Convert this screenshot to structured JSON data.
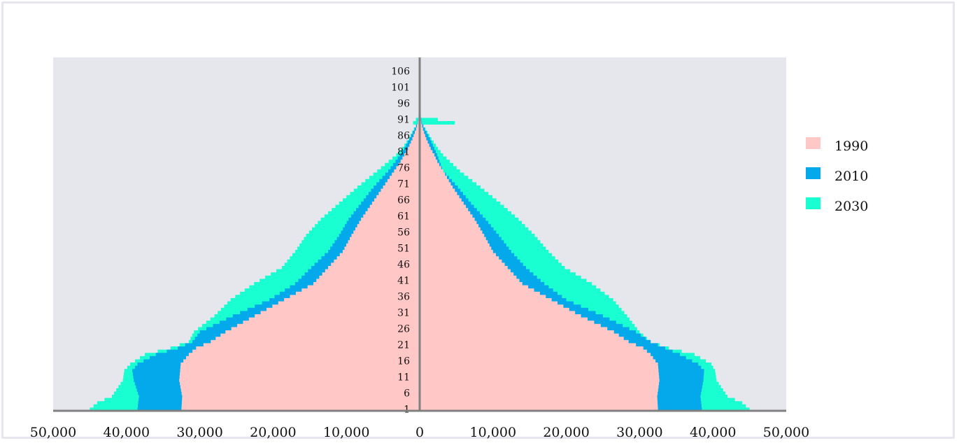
{
  "chart_data": {
    "type": "bar",
    "orientation": "horizontal-population-pyramid",
    "title": "",
    "xlabel": "",
    "ylabel": "",
    "xlim": [
      -50000,
      50000
    ],
    "x_tick_values": [
      -50000,
      -40000,
      -30000,
      -20000,
      -10000,
      0,
      10000,
      20000,
      30000,
      40000,
      50000
    ],
    "x_tick_labels": [
      "50,000",
      "40,000",
      "30,000",
      "20,000",
      "10,000",
      "0",
      "10,000",
      "20,000",
      "30,000",
      "40,000",
      "50,000"
    ],
    "age_range": [
      1,
      108
    ],
    "age_tick_labels": [
      "106",
      "101",
      "96",
      "91",
      "86",
      "81",
      "76",
      "71",
      "66",
      "61",
      "56",
      "51",
      "46",
      "41",
      "36",
      "31",
      "26",
      "21",
      "16",
      "11",
      "6",
      "1"
    ],
    "legend_position": "right",
    "grid": false,
    "colors": {
      "1990": "#ffc8c6",
      "2010": "#03a9ea",
      "2030": "#1affd1",
      "background": "#e6e7ec",
      "axis": "#808080"
    },
    "series": [
      {
        "name": "1990",
        "color": "#ffc8c6",
        "profile_age": [
          1,
          5,
          10,
          15,
          18,
          20,
          22,
          25,
          30,
          35,
          40,
          45,
          50,
          55,
          60,
          65,
          70,
          75,
          78,
          80,
          82,
          85,
          88,
          90,
          92,
          95
        ],
        "left": [
          32500,
          32400,
          32800,
          32600,
          31500,
          30500,
          28500,
          26500,
          22500,
          18500,
          14500,
          12500,
          10500,
          9300,
          8000,
          6500,
          5000,
          3500,
          2600,
          2100,
          1600,
          1000,
          500,
          250,
          120,
          40
        ],
        "right": [
          32500,
          32400,
          32700,
          32500,
          31500,
          30500,
          28500,
          26500,
          22000,
          18000,
          14000,
          12000,
          10000,
          8800,
          7500,
          6000,
          4500,
          3200,
          2400,
          2000,
          1500,
          900,
          450,
          220,
          110,
          40
        ]
      },
      {
        "name": "2010",
        "color": "#03a9ea",
        "profile_age": [
          1,
          5,
          10,
          13,
          15,
          18,
          20,
          22,
          25,
          30,
          35,
          40,
          45,
          50,
          55,
          60,
          65,
          70,
          75,
          78,
          80,
          82,
          85,
          88,
          90,
          92,
          95
        ],
        "left": [
          38500,
          38300,
          39000,
          39200,
          38500,
          36000,
          33000,
          31000,
          30000,
          25500,
          20500,
          17000,
          14800,
          12500,
          11000,
          9700,
          8000,
          6300,
          4300,
          3300,
          2700,
          2100,
          1400,
          700,
          300,
          150,
          50
        ],
        "right": [
          38500,
          38300,
          38700,
          38800,
          38000,
          35500,
          33500,
          31500,
          29500,
          25000,
          20000,
          17000,
          14500,
          12500,
          10800,
          9000,
          7000,
          5200,
          3200,
          2700,
          2400,
          2000,
          1400,
          700,
          300,
          150,
          50
        ]
      },
      {
        "name": "2030",
        "color": "#1affd1",
        "profile_age": [
          1,
          3,
          5,
          10,
          13,
          15,
          18,
          20,
          22,
          25,
          30,
          35,
          40,
          45,
          50,
          55,
          60,
          65,
          70,
          75,
          80,
          82,
          85,
          88,
          89,
          90,
          92,
          95,
          100
        ],
        "left": [
          45000,
          44000,
          42000,
          40500,
          40300,
          39500,
          37500,
          34000,
          31500,
          30800,
          28000,
          25800,
          22600,
          18800,
          17000,
          15500,
          13500,
          11000,
          8500,
          5800,
          3200,
          2400,
          1500,
          800,
          500,
          900,
          150,
          50,
          10
        ],
        "right": [
          45000,
          44000,
          42000,
          40500,
          40300,
          39800,
          37500,
          34000,
          31500,
          30000,
          28300,
          26400,
          23500,
          19800,
          17600,
          15700,
          13500,
          11000,
          8300,
          5500,
          3200,
          2500,
          1600,
          800,
          500,
          4800,
          150,
          50,
          10
        ]
      }
    ]
  }
}
